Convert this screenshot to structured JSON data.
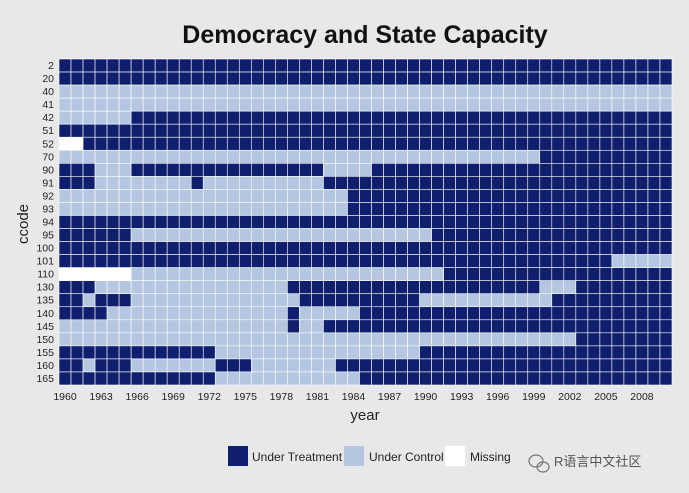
{
  "chart_data": {
    "type": "heatmap",
    "title": "Democracy and State Capacity",
    "xlabel": "year",
    "ylabel": "ccode",
    "x_start": 1960,
    "x_end": 2010,
    "x_ticks": [
      "1960",
      "1963",
      "1966",
      "1969",
      "1972",
      "1975",
      "1978",
      "1981",
      "1984",
      "1987",
      "1990",
      "1993",
      "1996",
      "1999",
      "2002",
      "2005",
      "2008"
    ],
    "rows": [
      "2",
      "20",
      "40",
      "41",
      "42",
      "51",
      "52",
      "70",
      "90",
      "91",
      "92",
      "93",
      "94",
      "95",
      "100",
      "101",
      "110",
      "130",
      "135",
      "140",
      "145",
      "150",
      "155",
      "160",
      "165"
    ],
    "states": [
      "Under Treatment",
      "Under Control",
      "Missing"
    ],
    "colors": {
      "Under Treatment": "#0f1f6e",
      "Under Control": "#b4c6e0",
      "Missing": "#ffffff"
    },
    "legend_position": "bottom",
    "grid": true,
    "treatment_periods": {
      "2": [
        [
          1960,
          2010
        ]
      ],
      "20": [
        [
          1960,
          2010
        ]
      ],
      "40": [],
      "41": [],
      "42": [
        [
          1966,
          2010
        ]
      ],
      "51": [
        [
          1960,
          2010
        ]
      ],
      "52": [
        [
          1962,
          2010
        ]
      ],
      "70": [
        [
          2000,
          2010
        ]
      ],
      "90": [
        [
          1960,
          1962
        ],
        [
          1966,
          1981
        ],
        [
          1986,
          2010
        ]
      ],
      "91": [
        [
          1960,
          1962
        ],
        [
          1971,
          1971
        ],
        [
          1982,
          2010
        ]
      ],
      "92": [
        [
          1984,
          2010
        ]
      ],
      "93": [
        [
          1984,
          2010
        ]
      ],
      "94": [
        [
          1960,
          2010
        ]
      ],
      "95": [
        [
          1960,
          1965
        ],
        [
          1991,
          2010
        ]
      ],
      "100": [
        [
          1960,
          2010
        ]
      ],
      "101": [
        [
          1960,
          2005
        ]
      ],
      "110": [
        [
          1992,
          2010
        ]
      ],
      "130": [
        [
          1960,
          1962
        ],
        [
          1979,
          1999
        ],
        [
          2003,
          2010
        ]
      ],
      "135": [
        [
          1960,
          1961
        ],
        [
          1963,
          1965
        ],
        [
          1980,
          1989
        ],
        [
          2001,
          2010
        ]
      ],
      "140": [
        [
          1960,
          1963
        ],
        [
          1979,
          1979
        ],
        [
          1985,
          2010
        ]
      ],
      "145": [
        [
          1979,
          1979
        ],
        [
          1982,
          2010
        ]
      ],
      "150": [
        [
          2003,
          2010
        ]
      ],
      "155": [
        [
          1960,
          1972
        ],
        [
          1990,
          2010
        ]
      ],
      "160": [
        [
          1960,
          1961
        ],
        [
          1963,
          1965
        ],
        [
          1973,
          1975
        ],
        [
          1983,
          2010
        ]
      ],
      "165": [
        [
          1960,
          1972
        ],
        [
          1985,
          2010
        ]
      ]
    },
    "missing_periods": {
      "52": [
        [
          1960,
          1961
        ]
      ],
      "110": [
        [
          1960,
          1965
        ]
      ]
    }
  },
  "watermark": {
    "icon": "wechat-icon",
    "text": "R语言中文社区"
  }
}
